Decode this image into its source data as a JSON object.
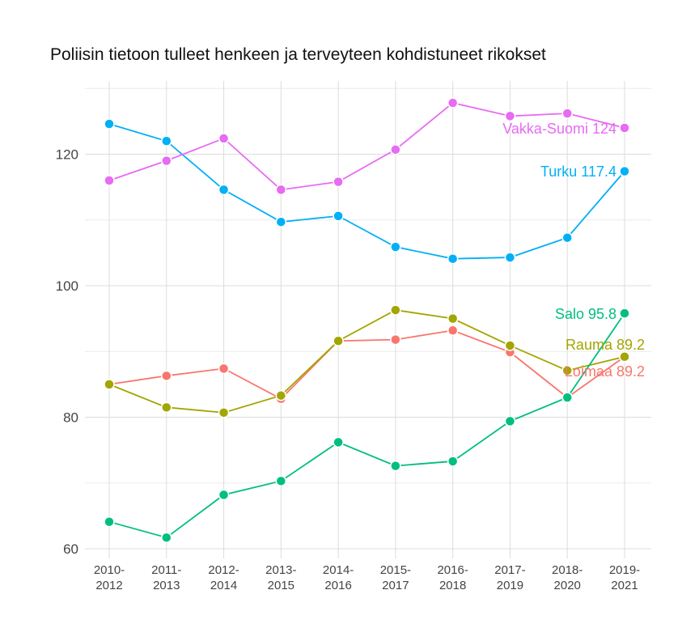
{
  "chart_data": {
    "type": "line",
    "title": "Poliisin tietoon tulleet henkeen ja terveyteen kohdistuneet rikokset",
    "xlabel": "",
    "ylabel": "",
    "categories": [
      "2010-2012",
      "2011-2013",
      "2012-2014",
      "2013-2015",
      "2014-2016",
      "2015-2017",
      "2016-2018",
      "2017-2019",
      "2018-2020",
      "2019-2021"
    ],
    "ylim": [
      58.5,
      131
    ],
    "yticks": [
      60,
      80,
      100,
      120
    ],
    "grid": true,
    "legend": "none (direct end labels)",
    "series": [
      {
        "name": "Loimaa",
        "color": "#F8766D",
        "end_label": "Loimaa 89.2",
        "values": [
          85.0,
          86.3,
          87.4,
          82.8,
          91.6,
          91.8,
          93.2,
          89.9,
          83.0,
          89.2
        ]
      },
      {
        "name": "Rauma",
        "color": "#A3A500",
        "end_label": "Rauma 89.2",
        "values": [
          85.0,
          81.5,
          80.7,
          83.3,
          91.6,
          96.3,
          95.0,
          90.9,
          87.1,
          89.2
        ]
      },
      {
        "name": "Salo",
        "color": "#00BF7D",
        "end_label": "Salo 95.8",
        "values": [
          64.1,
          61.7,
          68.2,
          70.3,
          76.2,
          72.6,
          73.3,
          79.4,
          83.0,
          95.8
        ]
      },
      {
        "name": "Turku",
        "color": "#00B0F6",
        "end_label": "Turku 117.4",
        "values": [
          124.6,
          122.0,
          114.6,
          109.7,
          110.6,
          105.9,
          104.1,
          104.3,
          107.3,
          117.4
        ]
      },
      {
        "name": "Vakka-Suomi",
        "color": "#E76BF3",
        "end_label": "Vakka-Suomi 124",
        "values": [
          116.0,
          119.0,
          122.4,
          114.6,
          115.8,
          120.7,
          127.8,
          125.8,
          126.2,
          124.0
        ]
      }
    ]
  }
}
